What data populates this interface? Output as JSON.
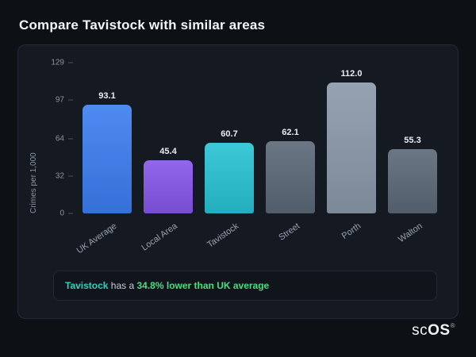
{
  "page": {
    "title": "Compare Tavistock with similar areas"
  },
  "chart_data": {
    "type": "bar",
    "title": "Compare Tavistock with similar areas",
    "categories": [
      "UK Average",
      "Local Area",
      "Tavistock",
      "Street",
      "Porth",
      "Walton"
    ],
    "values": [
      93.1,
      45.4,
      60.7,
      62.1,
      112.0,
      55.3
    ],
    "value_labels": [
      "93.1",
      "45.4",
      "60.7",
      "62.1",
      "112.0",
      "55.3"
    ],
    "bar_colors": [
      "#3b7df0",
      "#8655e8",
      "#27c2d4",
      "#5b6777",
      "#8having",
      "#5b6777"
    ],
    "bar_colors_fixed": [
      "#3b7df0",
      "#8655e8",
      "#27c2d4",
      "#5b6777",
      "#8998aa",
      "#5b6777"
    ],
    "xlabel": "",
    "ylabel": "Crimes per 1,000",
    "yticks": [
      0,
      32,
      64,
      97,
      129
    ],
    "ylim": [
      0,
      129
    ],
    "grid": false,
    "legend": false
  },
  "footer": {
    "highlight": "Tavistock",
    "middle": " has a ",
    "stat": "34.8% lower than UK average"
  },
  "logo": {
    "sc": "sc",
    "os": "OS",
    "reg": "®"
  }
}
